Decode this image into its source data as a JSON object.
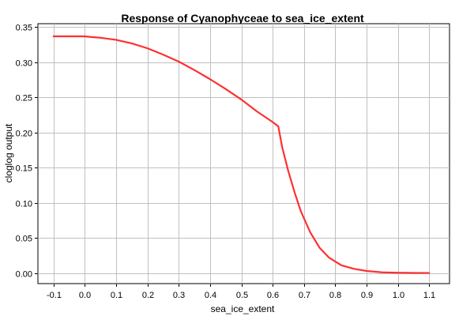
{
  "chart_data": {
    "type": "line",
    "title": "Response of Cyanophyceae to sea_ice_extent",
    "xlabel": "sea_ice_extent",
    "ylabel": "cloglog output",
    "xlim": [
      -0.15,
      1.165
    ],
    "ylim": [
      -0.015,
      0.355
    ],
    "x_ticks": [
      -0.1,
      0.0,
      0.1,
      0.2,
      0.3,
      0.4,
      0.5,
      0.6,
      0.7,
      0.8,
      0.9,
      1.0,
      1.1
    ],
    "x_tick_labels": [
      "-0.1",
      "0.0",
      "0.1",
      "0.2",
      "0.3",
      "0.4",
      "0.5",
      "0.6",
      "0.7",
      "0.8",
      "0.9",
      "1.0",
      "1.1"
    ],
    "y_ticks": [
      0.0,
      0.05,
      0.1,
      0.15,
      0.2,
      0.25,
      0.3,
      0.35
    ],
    "y_tick_labels": [
      "0.00",
      "0.05",
      "0.10",
      "0.15",
      "0.20",
      "0.25",
      "0.30",
      "0.35"
    ],
    "grid": true,
    "series": [
      {
        "color": "#ff3030",
        "x": [
          -0.1,
          -0.05,
          0.0,
          0.02,
          0.05,
          0.1,
          0.15,
          0.2,
          0.25,
          0.3,
          0.35,
          0.4,
          0.45,
          0.5,
          0.55,
          0.6,
          0.618,
          0.63,
          0.65,
          0.67,
          0.69,
          0.72,
          0.75,
          0.78,
          0.82,
          0.86,
          0.9,
          0.95,
          1.0,
          1.05,
          1.1
        ],
        "y": [
          0.337,
          0.337,
          0.337,
          0.336,
          0.335,
          0.332,
          0.327,
          0.32,
          0.311,
          0.301,
          0.289,
          0.276,
          0.262,
          0.247,
          0.23,
          0.215,
          0.209,
          0.18,
          0.145,
          0.115,
          0.088,
          0.058,
          0.036,
          0.022,
          0.011,
          0.006,
          0.003,
          0.001,
          0.0005,
          0.0002,
          0.0001
        ]
      }
    ]
  }
}
